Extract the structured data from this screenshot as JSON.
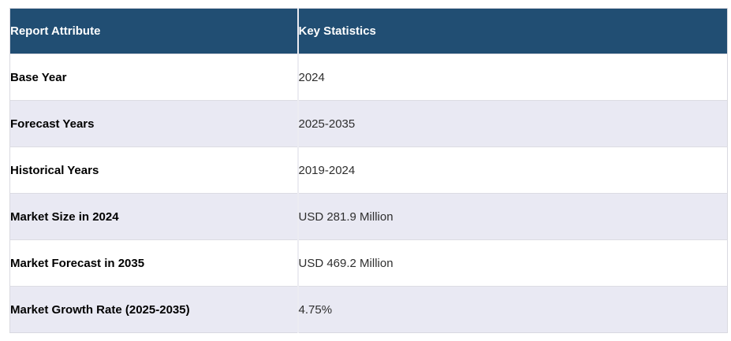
{
  "table": {
    "columns": [
      {
        "label": "Report Attribute"
      },
      {
        "label": "Key Statistics"
      }
    ],
    "rows": [
      {
        "attribute": "Base Year",
        "value": "2024"
      },
      {
        "attribute": "Forecast Years",
        "value": "2025-2035"
      },
      {
        "attribute": "Historical Years",
        "value": "2019-2024"
      },
      {
        "attribute": "Market Size in 2024",
        "value": "USD 281.9 Million"
      },
      {
        "attribute": "Market Forecast in 2035",
        "value": "USD 469.2 Million"
      },
      {
        "attribute": "Market Growth Rate (2025-2035)",
        "value": "4.75%"
      }
    ],
    "colors": {
      "header_bg": "#214E73",
      "header_text": "#FFFFFF",
      "row_odd_bg": "#FFFFFF",
      "row_even_bg": "#E9E9F3",
      "divider": "#ECECF2",
      "row_border": "#DCDCE3",
      "attribute_text": "#000000",
      "value_text": "#2E2E2E"
    }
  }
}
